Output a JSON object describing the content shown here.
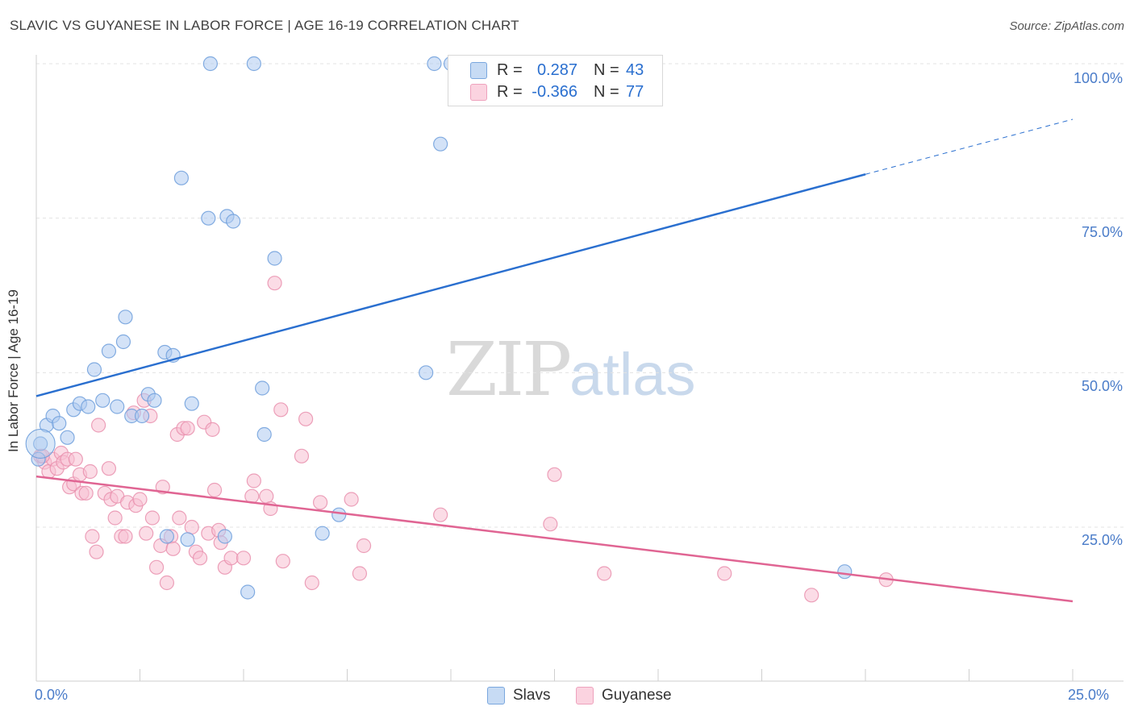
{
  "header": {
    "title": "SLAVIC VS GUYANESE IN LABOR FORCE | AGE 16-19 CORRELATION CHART",
    "source": "Source: ZipAtlas.com"
  },
  "watermark": {
    "zip": "ZIP",
    "atlas": "atlas"
  },
  "legend": {
    "slavs": {
      "r_label": "R =",
      "r_value": "0.287",
      "n_label": "N =",
      "n_value": "43"
    },
    "guyanese": {
      "r_label": "R =",
      "r_value": "-0.366",
      "n_label": "N =",
      "n_value": "77"
    }
  },
  "bottom_legend": {
    "slavs": "Slavs",
    "guyanese": "Guyanese"
  },
  "axes": {
    "ylabel": "In Labor Force | Age 16-19",
    "x_ticks": [
      "0.0%",
      "25.0%"
    ],
    "y_ticks": [
      "100.0%",
      "75.0%",
      "50.0%",
      "25.0%"
    ]
  },
  "colors": {
    "slavs_fill": "#aecbf0",
    "slavs_stroke": "#6e9fdc",
    "slavs_line": "#2a6fcf",
    "guyanese_fill": "#f7bfd1",
    "guyanese_stroke": "#e990ae",
    "guyanese_line": "#e06593",
    "axis_text": "#4a7cc9",
    "grid": "#e3e3e3"
  },
  "chart_data": {
    "type": "scatter",
    "xlabel": "",
    "ylabel": "In Labor Force | Age 16-19",
    "xlim": [
      0,
      25
    ],
    "ylim": [
      0,
      105
    ],
    "y_gridlines": [
      25,
      50,
      75,
      100
    ],
    "grid": true,
    "legend_position": "top-center",
    "series": [
      {
        "name": "Slavs",
        "r": 0.287,
        "n": 43,
        "trend": {
          "x0": 0,
          "y0": 46.2,
          "x1": 20,
          "y1": 82.1,
          "dashed_to_x": 25,
          "dashed_to_y": 91.0
        },
        "points": [
          [
            0.1,
            38.5
          ],
          [
            0.25,
            41.5
          ],
          [
            0.4,
            43.0
          ],
          [
            0.55,
            41.8
          ],
          [
            0.75,
            39.5
          ],
          [
            0.9,
            44.0
          ],
          [
            1.05,
            45.0
          ],
          [
            1.25,
            44.5
          ],
          [
            1.4,
            50.5
          ],
          [
            1.6,
            45.5
          ],
          [
            1.75,
            53.5
          ],
          [
            1.95,
            44.5
          ],
          [
            2.1,
            55.0
          ],
          [
            2.15,
            59.0
          ],
          [
            2.3,
            43.0
          ],
          [
            2.55,
            43.0
          ],
          [
            2.7,
            46.5
          ],
          [
            2.85,
            45.5
          ],
          [
            3.1,
            53.3
          ],
          [
            3.3,
            52.8
          ],
          [
            3.5,
            81.5
          ],
          [
            3.75,
            45.0
          ],
          [
            4.15,
            75.0
          ],
          [
            4.2,
            100.0
          ],
          [
            4.6,
            75.3
          ],
          [
            4.75,
            74.5
          ],
          [
            5.25,
            100.0
          ],
          [
            5.45,
            47.5
          ],
          [
            5.5,
            40.0
          ],
          [
            5.75,
            68.5
          ],
          [
            3.15,
            23.5
          ],
          [
            3.65,
            23.0
          ],
          [
            4.55,
            23.5
          ],
          [
            5.1,
            14.5
          ],
          [
            6.9,
            24.0
          ],
          [
            7.3,
            27.0
          ],
          [
            9.4,
            50.0
          ],
          [
            9.6,
            100.0
          ],
          [
            9.75,
            87.0
          ],
          [
            10.0,
            100.0
          ],
          [
            12.6,
            100.0
          ],
          [
            19.5,
            17.8
          ],
          [
            0.05,
            36.0
          ]
        ]
      },
      {
        "name": "Guyanese",
        "r": -0.366,
        "n": 77,
        "trend": {
          "x0": 0,
          "y0": 33.2,
          "x1": 25,
          "y1": 13.0
        },
        "points": [
          [
            0.1,
            36.5
          ],
          [
            0.2,
            35.5
          ],
          [
            0.3,
            34.0
          ],
          [
            0.4,
            36.0
          ],
          [
            0.5,
            34.5
          ],
          [
            0.6,
            37.0
          ],
          [
            0.65,
            35.5
          ],
          [
            0.75,
            36.0
          ],
          [
            0.8,
            31.5
          ],
          [
            0.9,
            32.0
          ],
          [
            0.95,
            36.0
          ],
          [
            1.05,
            33.5
          ],
          [
            1.1,
            30.5
          ],
          [
            1.2,
            30.5
          ],
          [
            1.3,
            34.0
          ],
          [
            1.35,
            23.5
          ],
          [
            1.45,
            21.0
          ],
          [
            1.5,
            41.5
          ],
          [
            1.65,
            30.5
          ],
          [
            1.75,
            34.5
          ],
          [
            1.8,
            29.5
          ],
          [
            1.9,
            26.5
          ],
          [
            1.95,
            30.0
          ],
          [
            2.05,
            23.5
          ],
          [
            2.15,
            23.5
          ],
          [
            2.2,
            29.0
          ],
          [
            2.35,
            43.5
          ],
          [
            2.4,
            28.5
          ],
          [
            2.5,
            29.5
          ],
          [
            2.6,
            45.5
          ],
          [
            2.65,
            24.0
          ],
          [
            2.75,
            43.0
          ],
          [
            2.8,
            26.5
          ],
          [
            2.9,
            18.5
          ],
          [
            3.0,
            22.0
          ],
          [
            3.05,
            31.5
          ],
          [
            3.15,
            16.0
          ],
          [
            3.25,
            23.5
          ],
          [
            3.3,
            21.5
          ],
          [
            3.4,
            40.0
          ],
          [
            3.45,
            26.5
          ],
          [
            3.55,
            41.0
          ],
          [
            3.65,
            41.0
          ],
          [
            3.75,
            25.0
          ],
          [
            3.85,
            21.0
          ],
          [
            3.95,
            20.0
          ],
          [
            4.05,
            42.0
          ],
          [
            4.15,
            24.0
          ],
          [
            4.25,
            40.8
          ],
          [
            4.3,
            31.0
          ],
          [
            4.4,
            24.5
          ],
          [
            4.45,
            22.5
          ],
          [
            4.55,
            18.5
          ],
          [
            4.7,
            20.0
          ],
          [
            5.0,
            20.0
          ],
          [
            5.2,
            30.0
          ],
          [
            5.25,
            32.5
          ],
          [
            5.55,
            30.0
          ],
          [
            5.65,
            28.0
          ],
          [
            5.75,
            64.5
          ],
          [
            5.9,
            44.0
          ],
          [
            5.95,
            19.5
          ],
          [
            6.4,
            36.5
          ],
          [
            6.5,
            42.5
          ],
          [
            6.65,
            16.0
          ],
          [
            6.85,
            29.0
          ],
          [
            7.6,
            29.5
          ],
          [
            7.8,
            17.5
          ],
          [
            7.9,
            22.0
          ],
          [
            9.75,
            27.0
          ],
          [
            12.4,
            25.5
          ],
          [
            12.5,
            33.5
          ],
          [
            13.7,
            17.5
          ],
          [
            16.6,
            17.5
          ],
          [
            18.7,
            14.0
          ],
          [
            20.5,
            16.5
          ],
          [
            0.15,
            36.5
          ]
        ]
      }
    ]
  }
}
